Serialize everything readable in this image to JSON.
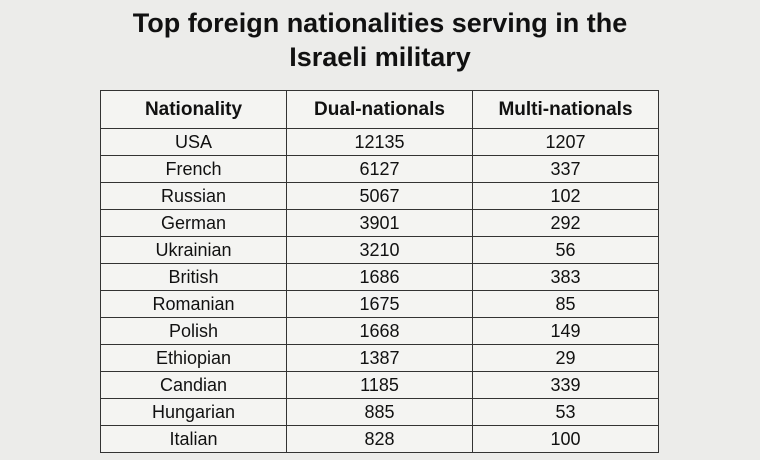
{
  "title": "Top foreign nationalities serving in the Israeli military",
  "table": {
    "header": [
      "Nationality",
      "Dual-nationals",
      "Multi-nationals"
    ],
    "rows": [
      [
        "USA",
        12135,
        1207
      ],
      [
        "French",
        6127,
        337
      ],
      [
        "Russian",
        5067,
        102
      ],
      [
        "German",
        3901,
        292
      ],
      [
        "Ukrainian",
        3210,
        56
      ],
      [
        "British",
        1686,
        383
      ],
      [
        "Romanian",
        1675,
        85
      ],
      [
        "Polish",
        1668,
        149
      ],
      [
        "Ethiopian",
        1387,
        29
      ],
      [
        "Candian",
        1185,
        339
      ],
      [
        "Hungarian",
        885,
        53
      ],
      [
        "Italian",
        828,
        100
      ]
    ]
  }
}
